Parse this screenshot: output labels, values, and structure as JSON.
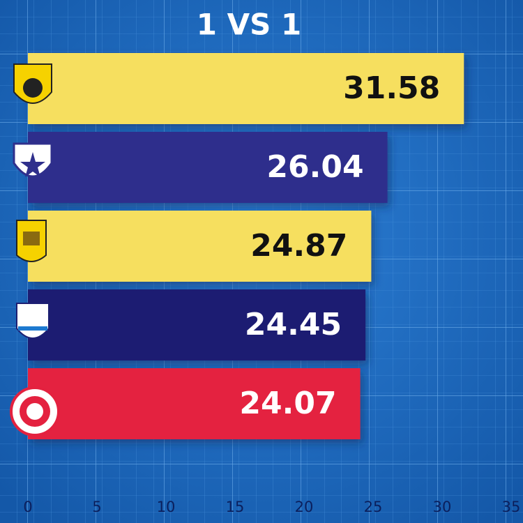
{
  "chart_data": {
    "type": "hbar",
    "title": "1 VS 1",
    "categories": [
      null,
      null,
      null,
      null,
      null
    ],
    "values": [
      31.58,
      26.04,
      24.87,
      24.45,
      24.07
    ],
    "colors": [
      "#f6df5e",
      "#2f2f8c",
      "#f6df5e",
      "#1d1f72",
      "#e4213f"
    ],
    "label_colors": [
      "#111111",
      "#ffffff",
      "#111111",
      "#ffffff",
      "#ffffff"
    ],
    "xlim": [
      0,
      35
    ],
    "xticks": [
      0,
      5,
      10,
      15,
      20,
      25,
      30,
      35
    ]
  }
}
